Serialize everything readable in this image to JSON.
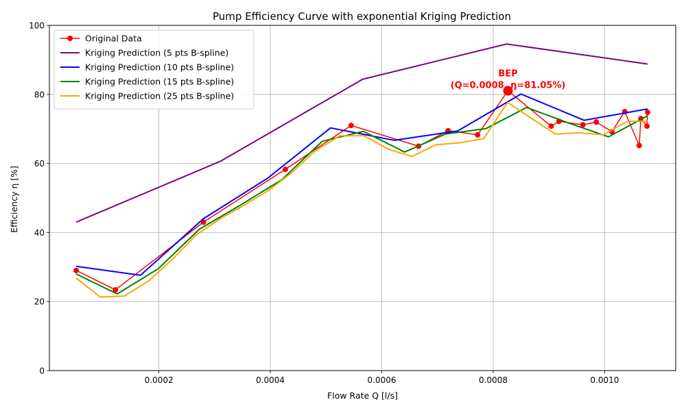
{
  "chart_data": {
    "type": "line",
    "title": "Pump Efficiency Curve with exponential Kriging Prediction",
    "xlabel": "Flow Rate Q [l/s]",
    "ylabel": "Efficiency η [%]",
    "xlim": [
      3.5e-06,
      0.0011275
    ],
    "ylim": [
      0,
      100
    ],
    "xticks": [
      0.0002,
      0.0004,
      0.0006,
      0.0008,
      0.001
    ],
    "xtick_labels": [
      "0.0002",
      "0.0004",
      "0.0006",
      "0.0008",
      "0.0010"
    ],
    "yticks": [
      0,
      20,
      40,
      60,
      80,
      100
    ],
    "ytick_labels": [
      "0",
      "20",
      "40",
      "60",
      "80",
      "100"
    ],
    "grid": true,
    "legend_position": "top-left",
    "series": [
      {
        "name": "Original Data",
        "color": "#ff0000",
        "marker": "circle",
        "x": [
          5.15e-05,
          0.000122,
          0.00028,
          0.000427,
          0.000545,
          0.000666,
          0.000719,
          0.000772,
          0.0008265,
          0.000904,
          0.000918,
          0.000961,
          0.000985,
          0.001013,
          0.001036,
          0.001062,
          0.001065,
          0.001076,
          0.001077
        ],
        "y": [
          29.0,
          23.4,
          43.0,
          58.3,
          71.0,
          65.0,
          69.5,
          68.3,
          81.05,
          70.8,
          72.2,
          71.2,
          72.0,
          69.2,
          75.0,
          65.2,
          73.0,
          70.8,
          74.8
        ]
      },
      {
        "name": "Kriging Prediction (5 pts B-spline)",
        "color": "#800080",
        "x": [
          5.15e-05,
          0.00031,
          0.000566,
          0.000824,
          0.001077
        ],
        "y": [
          43.0,
          60.6,
          84.4,
          94.6,
          88.8
        ]
      },
      {
        "name": "Kriging Prediction (10 pts B-spline)",
        "color": "#0000ff",
        "x": [
          5.15e-05,
          0.000167,
          0.00028,
          0.000395,
          0.000508,
          0.000622,
          0.000736,
          0.00085,
          0.000963,
          0.001077
        ],
        "y": [
          30.2,
          27.6,
          44.0,
          55.7,
          70.3,
          66.7,
          69.4,
          80.1,
          72.5,
          75.8
        ]
      },
      {
        "name": "Kriging Prediction (15 pts B-spline)",
        "color": "#008000",
        "x": [
          5.15e-05,
          0.000125,
          0.000199,
          0.000273,
          0.000346,
          0.00042,
          0.000493,
          0.000567,
          0.000641,
          0.000714,
          0.000787,
          0.00086,
          0.000934,
          0.001007,
          0.001077
        ],
        "y": [
          28.0,
          22.2,
          29.5,
          41.0,
          47.9,
          55.2,
          66.4,
          69.3,
          63.3,
          68.5,
          70.1,
          76.2,
          71.8,
          67.7,
          73.8
        ]
      },
      {
        "name": "Kriging Prediction (25 pts B-spline)",
        "color": "#ffa500",
        "x": [
          5.15e-05,
          9.45e-05,
          0.000138,
          0.000181,
          0.000224,
          0.000267,
          0.00031,
          0.000353,
          0.000396,
          0.000439,
          0.000482,
          0.000525,
          0.000568,
          0.000611,
          0.000654,
          0.000697,
          0.00074,
          0.000783,
          0.000826,
          0.000869,
          0.000912,
          0.000955,
          0.000998,
          0.001041,
          0.001077
        ],
        "y": [
          26.8,
          21.3,
          21.6,
          25.9,
          32.2,
          39.3,
          44.0,
          47.9,
          52.1,
          57.4,
          63.8,
          68.0,
          68.0,
          64.2,
          62.0,
          65.4,
          66.0,
          67.2,
          77.7,
          73.0,
          68.5,
          68.9,
          68.3,
          72.2,
          72.2
        ]
      }
    ],
    "annotation": {
      "lines": [
        "BEP",
        "(Q=0.0008, η=81.05%)"
      ],
      "point": {
        "x": 0.0008265,
        "y": 81.05
      },
      "color": "#ff0000"
    }
  }
}
